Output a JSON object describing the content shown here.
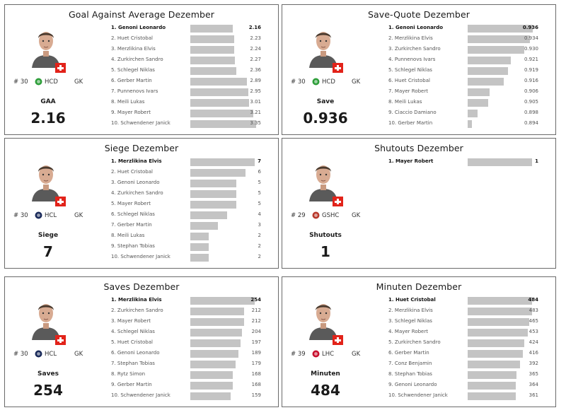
{
  "panels": [
    {
      "title": "Goal Against Average Dezember",
      "player": {
        "number": "# 30",
        "team": "HCD",
        "position": "GK",
        "logo_color": "#2e9e3a",
        "flag": "swiss-flag"
      },
      "stat_label": "GAA",
      "stat_value": "2.16",
      "chart_data": {
        "type": "bar",
        "orientation": "horizontal",
        "categories": [
          "1. Genoni Leonardo",
          "2. Huet Cristobal",
          "3. Merzlikina Elvis",
          "4. Zurkirchen Sandro",
          "5. Schlegel Niklas",
          "6. Gerber Martin",
          "7. Punnenovs Ivars",
          "8. Meili Lukas",
          "9. Mayer Robert",
          "10. Schwendener Janick"
        ],
        "values": [
          2.16,
          2.23,
          2.24,
          2.27,
          2.36,
          2.89,
          2.95,
          3.01,
          3.21,
          3.35
        ],
        "labels": [
          "2.16",
          "2.23",
          "2.24",
          "2.27",
          "2.36",
          "2.89",
          "2.95",
          "3.01",
          "3.21",
          "3.35"
        ],
        "title": "Goal Against Average Dezember",
        "xlim": [
          0,
          3.4
        ]
      }
    },
    {
      "title": "Save-Quote Dezember",
      "player": {
        "number": "# 30",
        "team": "HCD",
        "position": "GK",
        "logo_color": "#2e9e3a",
        "flag": "swiss-flag"
      },
      "stat_label": "Save",
      "stat_value": "0.936",
      "chart_data": {
        "type": "bar",
        "orientation": "horizontal",
        "categories": [
          "1. Genoni Leonardo",
          "2. Merzlikina Elvis",
          "3. Zurkirchen Sandro",
          "4. Punnenovs Ivars",
          "5. Schlegel Niklas",
          "6. Huet Cristobal",
          "7. Mayer Robert",
          "8. Meili Lukas",
          "9. Ciaccio Damiano",
          "10. Gerber Martin"
        ],
        "values": [
          0.936,
          0.934,
          0.93,
          0.921,
          0.919,
          0.916,
          0.906,
          0.905,
          0.898,
          0.894
        ],
        "labels": [
          "0.936",
          "0.934",
          "0.930",
          "0.921",
          "0.919",
          "0.916",
          "0.906",
          "0.905",
          "0.898",
          "0.894"
        ],
        "title": "Save-Quote Dezember",
        "xlim": [
          0.891,
          0.937
        ]
      }
    },
    {
      "title": "Siege Dezember",
      "player": {
        "number": "# 30",
        "team": "HCL",
        "position": "GK",
        "logo_color": "#1a2a5a",
        "flag": "swiss-flag"
      },
      "stat_label": "Siege",
      "stat_value": "7",
      "chart_data": {
        "type": "bar",
        "orientation": "horizontal",
        "categories": [
          "1. Merzlikina Elvis",
          "2. Huet Cristobal",
          "3. Genoni Leonardo",
          "4. Zurkirchen Sandro",
          "5. Mayer Robert",
          "6. Schlegel Niklas",
          "7. Gerber Martin",
          "8. Meili Lukas",
          "9. Stephan Tobias",
          "10. Schwendener Janick"
        ],
        "values": [
          7,
          6,
          5,
          5,
          5,
          4,
          3,
          2,
          2,
          2
        ],
        "labels": [
          "7",
          "6",
          "5",
          "5",
          "5",
          "4",
          "3",
          "2",
          "2",
          "2"
        ],
        "title": "Siege Dezember",
        "xlim": [
          0,
          7.2
        ]
      }
    },
    {
      "title": "Shutouts Dezember",
      "player": {
        "number": "# 29",
        "team": "GSHC",
        "position": "GK",
        "logo_color": "#b8392b",
        "flag": "swiss-flag"
      },
      "stat_label": "Shutouts",
      "stat_value": "1",
      "chart_data": {
        "type": "bar",
        "orientation": "horizontal",
        "categories": [
          "1. Mayer Robert"
        ],
        "values": [
          1
        ],
        "labels": [
          "1"
        ],
        "title": "Shutouts Dezember",
        "xlim": [
          0,
          1.03
        ]
      }
    },
    {
      "title": "Saves Dezember",
      "player": {
        "number": "# 30",
        "team": "HCL",
        "position": "GK",
        "logo_color": "#1a2a5a",
        "flag": "swiss-flag"
      },
      "stat_label": "Saves",
      "stat_value": "254",
      "chart_data": {
        "type": "bar",
        "orientation": "horizontal",
        "categories": [
          "1. Merzlikina Elvis",
          "2. Zurkirchen Sandro",
          "3. Mayer Robert",
          "4. Schlegel Niklas",
          "5. Huet Cristobal",
          "6. Genoni Leonardo",
          "7. Stephan Tobias",
          "8. Rytz Simon",
          "9. Gerber Martin",
          "10. Schwendener Janick"
        ],
        "values": [
          254,
          212,
          212,
          204,
          197,
          189,
          179,
          168,
          168,
          159
        ],
        "labels": [
          "254",
          "212",
          "212",
          "204",
          "197",
          "189",
          "179",
          "168",
          "168",
          "159"
        ],
        "title": "Saves Dezember",
        "xlim": [
          0,
          262
        ]
      }
    },
    {
      "title": "Minuten Dezember",
      "player": {
        "number": "# 39",
        "team": "LHC",
        "position": "GK",
        "logo_color": "#c8102e",
        "flag": "swiss-flag"
      },
      "stat_label": "Minuten",
      "stat_value": "484",
      "chart_data": {
        "type": "bar",
        "orientation": "horizontal",
        "categories": [
          "1. Huet Cristobal",
          "2. Merzlikina Elvis",
          "3. Schlegel Niklas",
          "4. Mayer Robert",
          "5. Zurkirchen Sandro",
          "6. Gerber Martin",
          "7. Conz Benjamin",
          "8. Stephan Tobias",
          "9. Genoni Leonardo",
          "10. Schwendener Janick"
        ],
        "values": [
          484,
          483,
          465,
          453,
          424,
          416,
          392,
          365,
          364,
          361
        ],
        "labels": [
          "484",
          "483",
          "465",
          "453",
          "424",
          "416",
          "392",
          "365",
          "364",
          "361"
        ],
        "title": "Minuten Dezember",
        "xlim": [
          0,
          500
        ]
      }
    }
  ]
}
